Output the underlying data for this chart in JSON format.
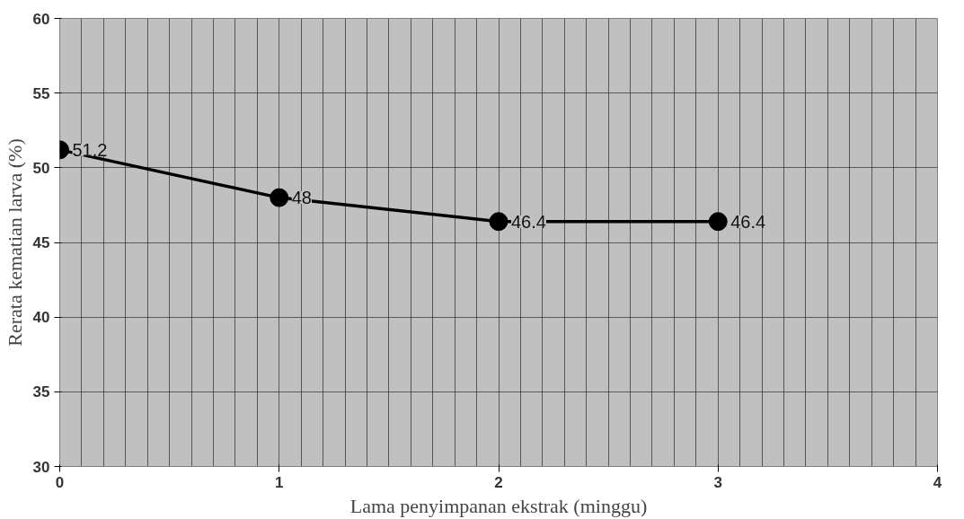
{
  "chart_data": {
    "type": "line",
    "xlabel": "Lama penyimpanan ekstrak (minggu)",
    "ylabel": "Rerata kematian larva (%)",
    "x": [
      0,
      1,
      2,
      3
    ],
    "series": [
      {
        "color": "#000000",
        "values": [
          51.2,
          48,
          46.4,
          46.4
        ]
      }
    ],
    "xlim": [
      0,
      4
    ],
    "xticks": [
      0,
      1,
      2,
      3,
      4
    ],
    "ylim": [
      30,
      60
    ],
    "yticks": [
      30,
      35,
      40,
      45,
      50,
      55,
      60
    ],
    "grid": true,
    "marker": "circle",
    "line_style": "solid",
    "data_labels": true
  }
}
